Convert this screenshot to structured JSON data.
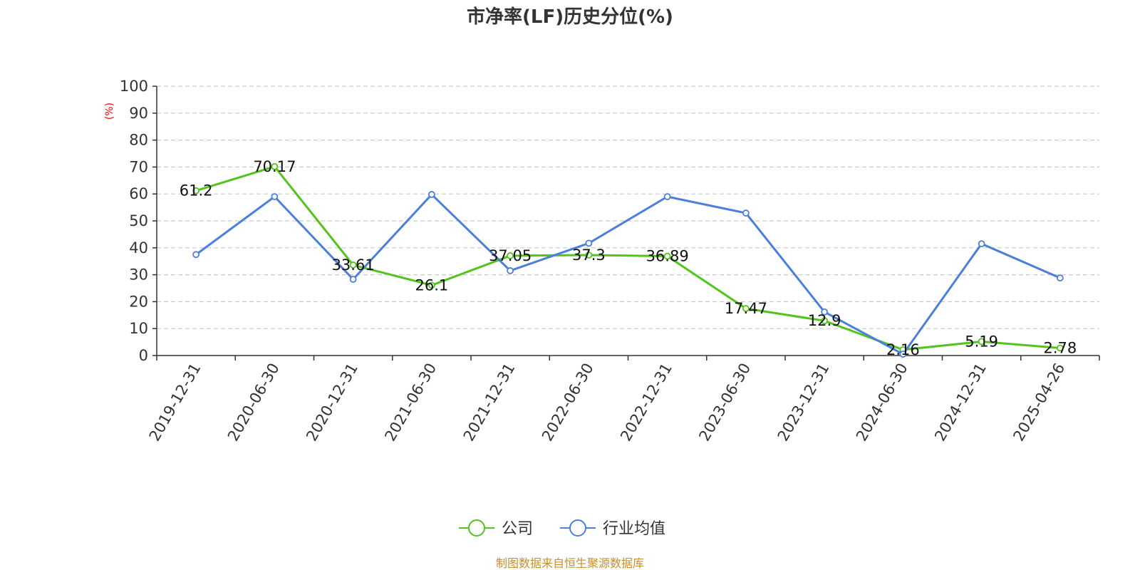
{
  "source": {
    "text": "制图数据来自恒生聚源数据库",
    "color": "#c8902a"
  },
  "chart_data": {
    "type": "line",
    "title": "市净率(LF)历史分位(%)",
    "xlabel": "",
    "ylabel": "(%)",
    "ylabel_color": "#ff0000",
    "ylim": [
      0,
      100
    ],
    "yticks": [
      0,
      10,
      20,
      30,
      40,
      50,
      60,
      70,
      80,
      90,
      100
    ],
    "grid": true,
    "legend_position": "bottom-center",
    "categories": [
      "2019-12-31",
      "2020-06-30",
      "2020-12-31",
      "2021-06-30",
      "2021-12-31",
      "2022-06-30",
      "2022-12-31",
      "2023-06-30",
      "2023-12-31",
      "2024-06-30",
      "2024-12-31",
      "2025-04-26"
    ],
    "series": [
      {
        "name": "公司",
        "color": "#52c41a",
        "show_labels": true,
        "values": [
          61.2,
          70.17,
          33.61,
          26.1,
          37.05,
          37.3,
          36.89,
          17.47,
          12.9,
          2.16,
          5.19,
          2.78
        ],
        "labels": [
          "61.2",
          "70.17",
          "33.61",
          "26.1",
          "37.05",
          "37.3",
          "36.89",
          "17.47",
          "12.9",
          "2.16",
          "5.19",
          "2.78"
        ]
      },
      {
        "name": "行业均值",
        "color": "#4a7fdc",
        "show_labels": false,
        "values": [
          37.5,
          59,
          28.3,
          59.8,
          31.5,
          41.7,
          59,
          52.9,
          16.2,
          0.5,
          41.5,
          28.8
        ]
      }
    ]
  }
}
